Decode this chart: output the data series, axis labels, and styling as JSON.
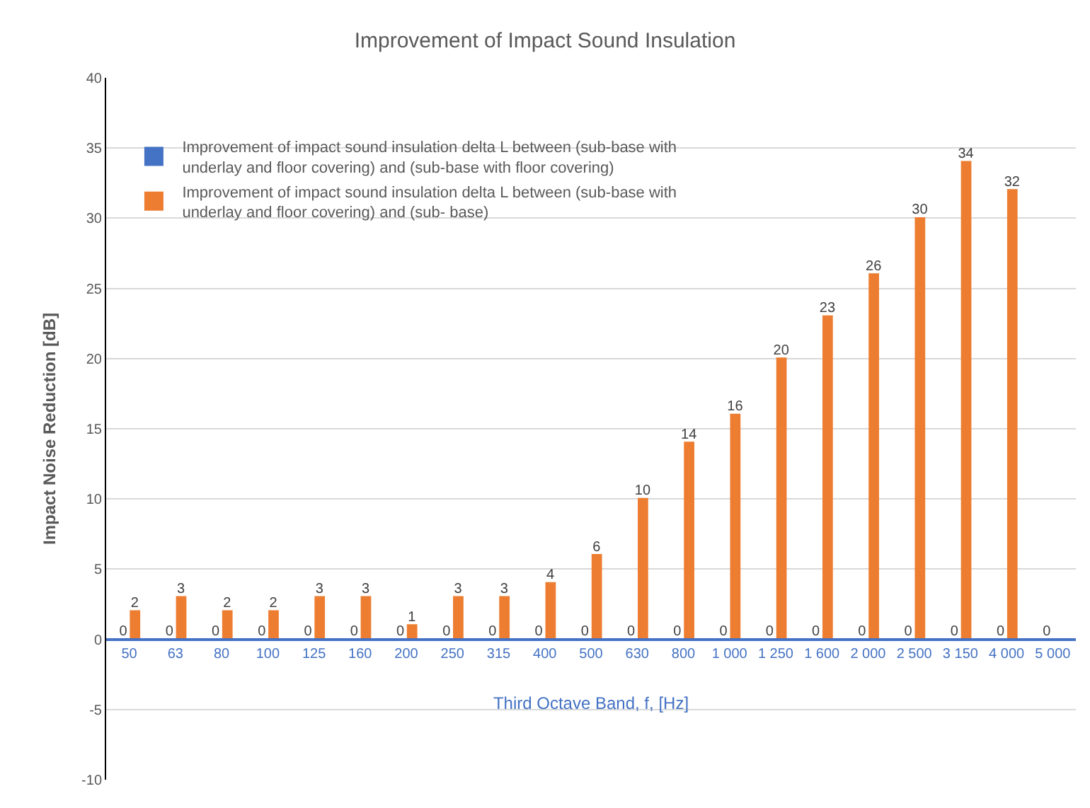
{
  "chart_data": {
    "type": "bar",
    "title": "Improvement of Impact Sound Insulation",
    "xlabel": "Third Octave Band, f, [Hz]",
    "ylabel": "Impact Noise Reduction [dB]",
    "categories": [
      "50",
      "63",
      "80",
      "100",
      "125",
      "160",
      "200",
      "250",
      "315",
      "400",
      "500",
      "630",
      "800",
      "1 000",
      "1 250",
      "1 600",
      "2 000",
      "2 500",
      "3 150",
      "4 000",
      "5 000"
    ],
    "series": [
      {
        "name": "Improvement of impact sound insulation delta L between (sub-base with underlay and floor covering) and (sub-base with floor covering)",
        "color": "#4472c4",
        "values": [
          0,
          0,
          0,
          0,
          0,
          0,
          0,
          0,
          0,
          0,
          0,
          0,
          0,
          0,
          0,
          0,
          0,
          0,
          0,
          0,
          0
        ]
      },
      {
        "name": "Improvement of impact sound insulation delta L between (sub-base with underlay and floor covering) and (sub- base)",
        "color": "#ed7d31",
        "values": [
          2,
          3,
          2,
          2,
          3,
          3,
          1,
          3,
          3,
          4,
          6,
          10,
          14,
          16,
          20,
          23,
          26,
          30,
          34,
          32,
          null
        ]
      }
    ],
    "data_labels": true,
    "ylim": [
      -10,
      40
    ],
    "yticks": [
      -10,
      -5,
      0,
      5,
      10,
      15,
      20,
      25,
      30,
      35,
      40
    ],
    "grid": "y",
    "legend": "top left"
  }
}
